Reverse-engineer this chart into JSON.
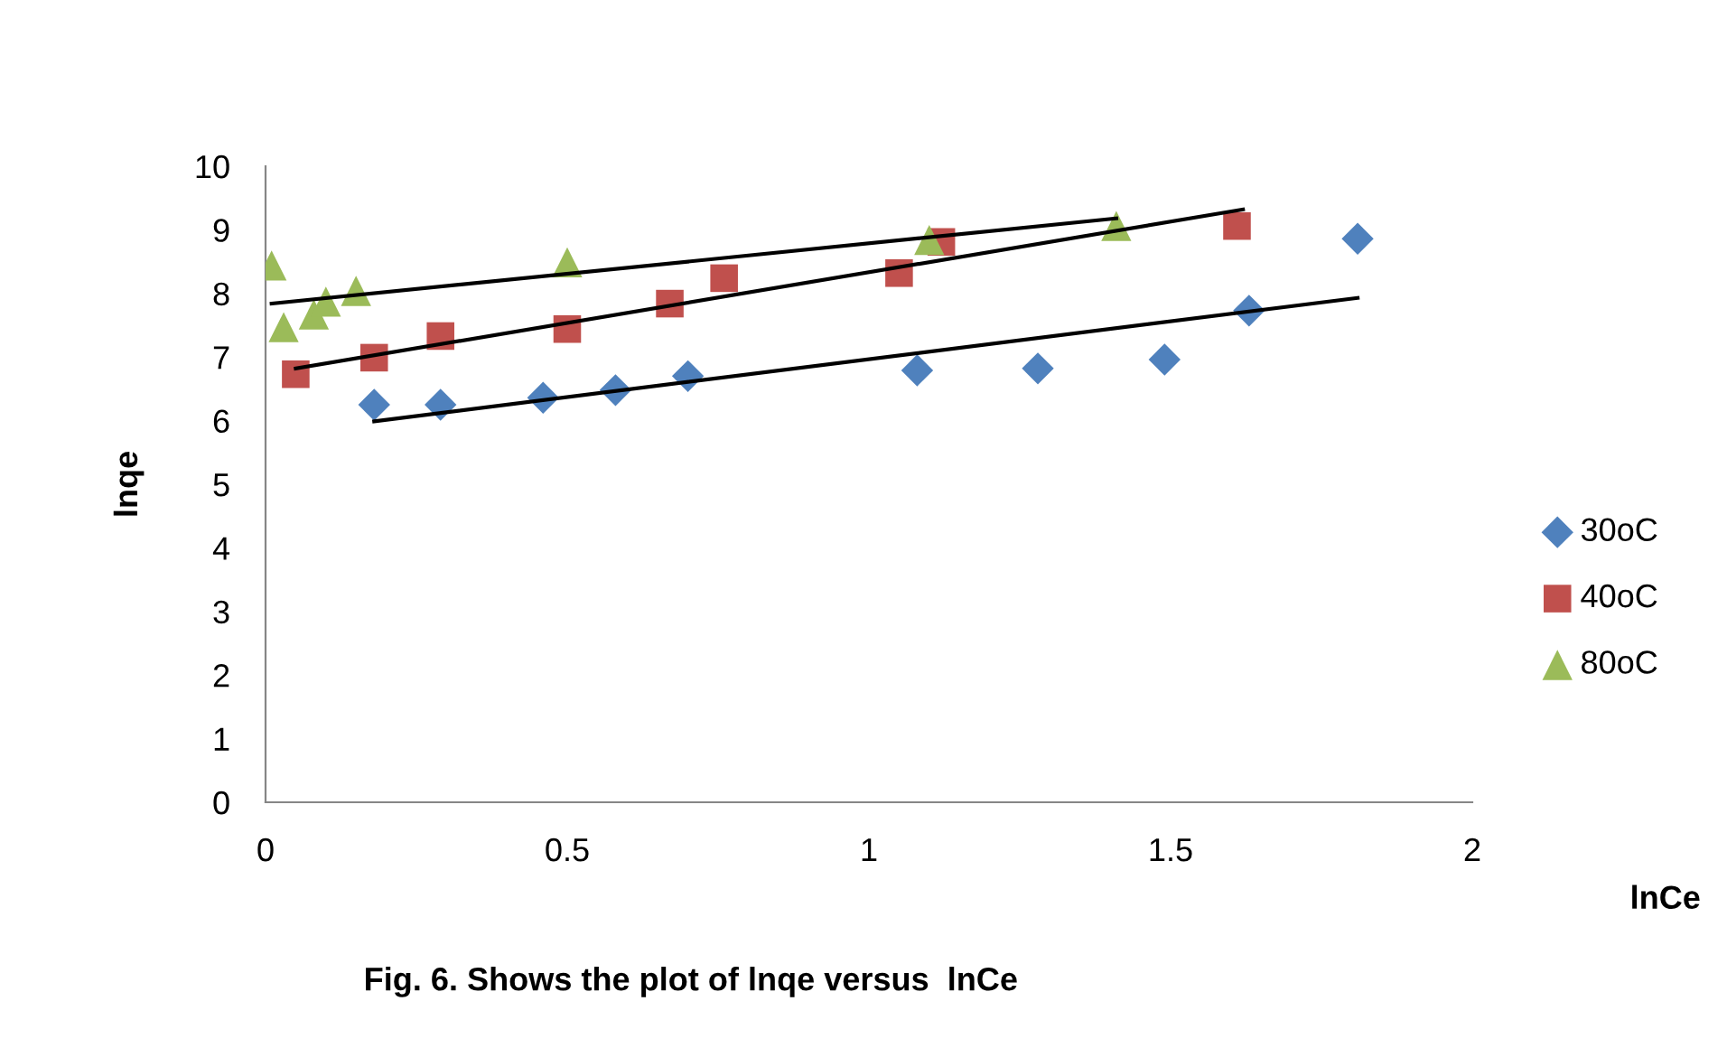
{
  "chart_data": {
    "type": "scatter",
    "xlabel": "lnCe",
    "ylabel": "lnqe",
    "annotations": [
      "Fig. 6. Shows the plot of lnqe versus  lnCe"
    ],
    "xlim": [
      0,
      2
    ],
    "ylim": [
      0,
      10
    ],
    "xticks": [
      0,
      0.5,
      1,
      1.5,
      2
    ],
    "yticks": [
      0,
      1,
      2,
      3,
      4,
      5,
      6,
      7,
      8,
      9,
      10
    ],
    "grid": false,
    "legend": "right",
    "series": [
      {
        "name": "30oC",
        "color": "#4f81bd",
        "marker": "diamond",
        "x": [
          0.18,
          0.29,
          0.46,
          0.58,
          0.7,
          1.08,
          1.28,
          1.49,
          1.63,
          1.81
        ],
        "values": [
          6.25,
          6.25,
          6.36,
          6.48,
          6.7,
          6.79,
          6.82,
          6.96,
          7.73,
          8.86
        ]
      },
      {
        "name": "40oC",
        "color": "#c0504d",
        "marker": "square",
        "x": [
          0.05,
          0.18,
          0.29,
          0.5,
          0.67,
          0.76,
          1.05,
          1.12,
          1.61
        ],
        "values": [
          6.73,
          6.99,
          7.33,
          7.44,
          7.84,
          8.24,
          8.32,
          8.81,
          9.06
        ]
      },
      {
        "name": "80oC",
        "color": "#9bbb59",
        "marker": "triangle",
        "x": [
          0.01,
          0.03,
          0.08,
          0.1,
          0.15,
          0.5,
          1.1,
          1.41
        ],
        "values": [
          8.44,
          7.47,
          7.67,
          7.87,
          8.04,
          8.49,
          8.84,
          9.06
        ]
      },
      {
        "type": "line",
        "color": "#000000",
        "marker": "none",
        "line_style": "solid",
        "x": [
          0.18,
          1.81
        ],
        "values": [
          5.99,
          7.93
        ]
      },
      {
        "type": "line",
        "color": "#000000",
        "marker": "none",
        "line_style": "solid",
        "x": [
          0.05,
          1.62
        ],
        "values": [
          6.82,
          9.32
        ]
      },
      {
        "type": "line",
        "color": "#000000",
        "marker": "none",
        "line_style": "solid",
        "x": [
          0.01,
          1.41
        ],
        "values": [
          7.84,
          9.18
        ]
      }
    ]
  }
}
